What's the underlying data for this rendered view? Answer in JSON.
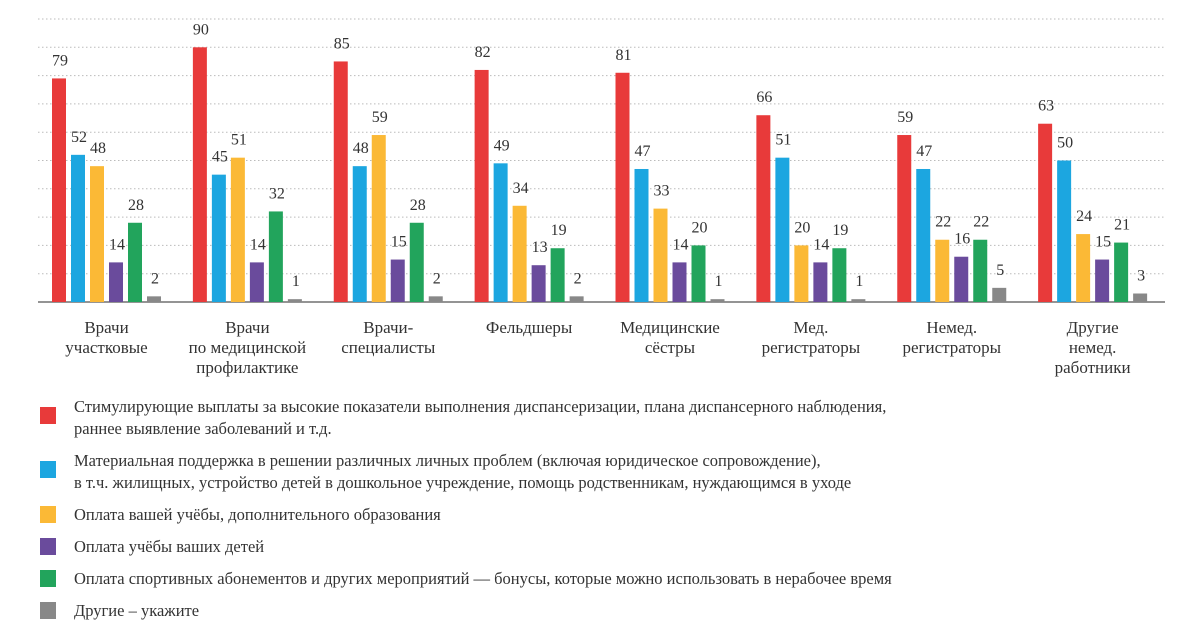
{
  "chart_data": {
    "type": "bar",
    "categories": [
      [
        "Врачи",
        "участковые"
      ],
      [
        "Врачи",
        "по медицинской",
        "профилактике"
      ],
      [
        "Врачи-",
        "специалисты"
      ],
      [
        "Фельдшеры"
      ],
      [
        "Медицинские",
        "сёстры"
      ],
      [
        "Мед.",
        "регистраторы"
      ],
      [
        "Немед.",
        "регистраторы"
      ],
      [
        "Другие",
        "немед.",
        "работники"
      ]
    ],
    "ylim": [
      0,
      100
    ],
    "grid": true,
    "legend_position": "bottom",
    "series": [
      {
        "name": [
          "Стимулирующие выплаты за высокие показатели выполнения диспансеризации, плана диспансерного наблюдения,",
          "раннее выявление заболеваний и т.д."
        ],
        "color": "#e83a3a",
        "values": [
          79,
          90,
          85,
          82,
          81,
          66,
          59,
          63
        ]
      },
      {
        "name": [
          "Материальная поддержка в решении различных личных проблем (включая юридическое сопровождение),",
          "в т.ч. жилищных, устройство детей в дошкольное учреждение, помощь родственникам, нуждающимся в уходе"
        ],
        "color": "#1ca6e0",
        "values": [
          52,
          45,
          48,
          49,
          47,
          51,
          47,
          50
        ]
      },
      {
        "name": [
          "Оплата вашей учёбы, дополнительного образования"
        ],
        "color": "#fbb936",
        "values": [
          48,
          51,
          59,
          34,
          33,
          20,
          22,
          24
        ]
      },
      {
        "name": [
          "Оплата учёбы ваших детей"
        ],
        "color": "#6a4b9c",
        "values": [
          14,
          14,
          15,
          13,
          14,
          14,
          16,
          15
        ]
      },
      {
        "name": [
          "Оплата спортивных абонементов и других мероприятий — бонусы, которые можно использовать в  нерабочее время"
        ],
        "color": "#22a45c",
        "values": [
          28,
          32,
          28,
          19,
          20,
          19,
          22,
          21
        ]
      },
      {
        "name": [
          "Другие – укажите"
        ],
        "color": "#888888",
        "values": [
          2,
          1,
          2,
          2,
          1,
          1,
          5,
          3
        ]
      }
    ]
  }
}
